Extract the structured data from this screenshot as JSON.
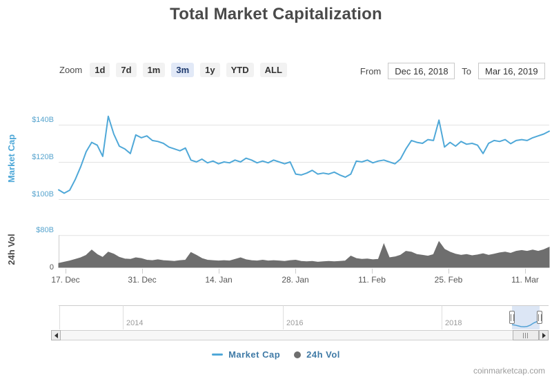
{
  "title": "Total Market Capitalization",
  "toolbar": {
    "zoom_label": "Zoom",
    "zoom_buttons": [
      {
        "label": "1d",
        "selected": false
      },
      {
        "label": "7d",
        "selected": false
      },
      {
        "label": "1m",
        "selected": false
      },
      {
        "label": "3m",
        "selected": true
      },
      {
        "label": "1y",
        "selected": false
      },
      {
        "label": "YTD",
        "selected": false
      },
      {
        "label": "ALL",
        "selected": false
      }
    ],
    "from_label": "From",
    "from_value": "Dec 16, 2018",
    "to_label": "To",
    "to_value": "Mar 16, 2019"
  },
  "colors": {
    "line": "#4fa8d8",
    "volume": "#6e6e6e",
    "selected_button_bg": "#e2e9f7",
    "selection_mask": "rgba(96,140,208,0.22)"
  },
  "x_axis": {
    "tick_labels": [
      "17. Dec",
      "31. Dec",
      "14. Jan",
      "28. Jan",
      "11. Feb",
      "25. Feb",
      "11. Mar"
    ]
  },
  "chart_data": [
    {
      "type": "line",
      "name": "Market Cap",
      "unit": "billion USD",
      "ylabel": "Market Cap",
      "y_ticks": [
        {
          "label": "$140B",
          "value": 140
        },
        {
          "label": "$120B",
          "value": 120
        },
        {
          "label": "$100B",
          "value": 100
        }
      ],
      "ylim": [
        97,
        150
      ],
      "x_range": [
        "Dec 16, 2018",
        "Mar 16, 2019"
      ],
      "x_unit": "day",
      "grid": true,
      "values": [
        105.0,
        103.2,
        104.8,
        110.5,
        117.5,
        125.5,
        130.5,
        129.0,
        123.0,
        144.5,
        135.0,
        128.5,
        127.0,
        124.5,
        134.5,
        133.0,
        134.0,
        131.5,
        131.0,
        130.0,
        128.0,
        127.0,
        126.0,
        127.5,
        121.0,
        120.0,
        121.5,
        119.5,
        120.5,
        119.0,
        120.0,
        119.5,
        121.0,
        120.0,
        122.0,
        121.0,
        119.5,
        120.5,
        119.5,
        121.0,
        120.0,
        119.0,
        120.0,
        113.5,
        113.0,
        114.0,
        115.5,
        113.5,
        114.0,
        113.5,
        114.5,
        113.0,
        111.8,
        113.5,
        120.5,
        120.0,
        121.0,
        119.5,
        120.5,
        121.0,
        120.0,
        119.0,
        121.5,
        127.0,
        131.5,
        130.5,
        130.0,
        132.0,
        131.5,
        142.5,
        128.0,
        130.5,
        128.5,
        131.0,
        129.5,
        130.0,
        129.0,
        124.5,
        130.0,
        131.5,
        131.0,
        132.0,
        129.8,
        131.5,
        132.0,
        131.5,
        133.0,
        134.0,
        135.0,
        136.5
      ]
    },
    {
      "type": "area",
      "name": "24h Vol",
      "unit": "billion USD",
      "ylabel": "24h Vol",
      "y_ticks": [
        {
          "label": "$80B",
          "value": 80
        },
        {
          "label": "0",
          "value": 0
        }
      ],
      "ylim": [
        0,
        80
      ],
      "x_range": [
        "Dec 16, 2018",
        "Mar 16, 2019"
      ],
      "x_unit": "day",
      "grid": true,
      "values": [
        10,
        13,
        16,
        20,
        24,
        30,
        43,
        32,
        25,
        38,
        33,
        25,
        21,
        20,
        24,
        22,
        18,
        17,
        19,
        17,
        16,
        15,
        17,
        18,
        37,
        30,
        22,
        18,
        17,
        16,
        17,
        16,
        20,
        24,
        19,
        17,
        16,
        18,
        16,
        17,
        16,
        15,
        17,
        18,
        15,
        14,
        15,
        13,
        14,
        15,
        14,
        15,
        16,
        28,
        22,
        20,
        21,
        19,
        20,
        58,
        24,
        26,
        30,
        40,
        38,
        32,
        30,
        28,
        32,
        64,
        45,
        38,
        33,
        30,
        32,
        29,
        31,
        34,
        30,
        33,
        36,
        38,
        35,
        40,
        42,
        40,
        43,
        40,
        44,
        50
      ]
    }
  ],
  "navigator": {
    "year_labels": [
      "2014",
      "2016",
      "2018"
    ],
    "selection_range": [
      "Dec 16, 2018",
      "Mar 16, 2019"
    ],
    "selection_profile": [
      0.78,
      0.8,
      0.83,
      0.86,
      0.87,
      0.85,
      0.8,
      0.72,
      0.66,
      0.62
    ]
  },
  "legend": [
    {
      "name": "Market Cap",
      "marker": "line",
      "color": "#4fa8d8"
    },
    {
      "name": "24h Vol",
      "marker": "circle",
      "color": "#6e6e6e"
    }
  ],
  "watermark": "coinmarketcap.com"
}
